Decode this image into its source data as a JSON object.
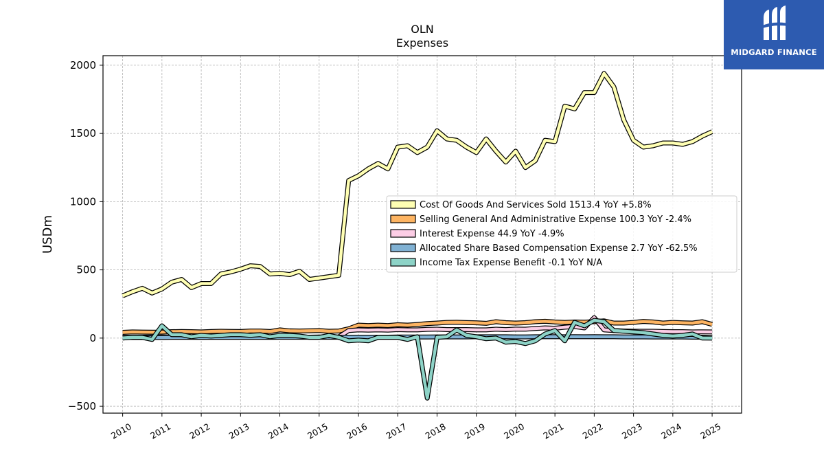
{
  "chart_data": {
    "type": "line",
    "title": "OLN",
    "subtitle": "Expenses",
    "ylabel": "USDm",
    "xlabel": "",
    "ylim": [
      -550,
      2070
    ],
    "xlim": [
      2009.5,
      2025.75
    ],
    "yticks": [
      -500,
      0,
      500,
      1000,
      1500,
      2000
    ],
    "ytick_labels": [
      "−500",
      "0",
      "500",
      "1000",
      "1500",
      "2000"
    ],
    "xticks": [
      2010,
      2011,
      2012,
      2013,
      2014,
      2015,
      2016,
      2017,
      2018,
      2019,
      2020,
      2021,
      2022,
      2023,
      2024,
      2025
    ],
    "xtick_labels": [
      "2010",
      "2011",
      "2012",
      "2013",
      "2014",
      "2015",
      "2016",
      "2017",
      "2018",
      "2019",
      "2020",
      "2021",
      "2022",
      "2023",
      "2024",
      "2025"
    ],
    "grid": true,
    "legend_position": "center-right",
    "x": [
      2010.0,
      2010.25,
      2010.5,
      2010.75,
      2011.0,
      2011.25,
      2011.5,
      2011.75,
      2012.0,
      2012.25,
      2012.5,
      2012.75,
      2013.0,
      2013.25,
      2013.5,
      2013.75,
      2014.0,
      2014.25,
      2014.5,
      2014.75,
      2015.0,
      2015.25,
      2015.5,
      2015.75,
      2016.0,
      2016.25,
      2016.5,
      2016.75,
      2017.0,
      2017.25,
      2017.5,
      2017.75,
      2018.0,
      2018.25,
      2018.5,
      2018.75,
      2019.0,
      2019.25,
      2019.5,
      2019.75,
      2020.0,
      2020.25,
      2020.5,
      2020.75,
      2021.0,
      2021.25,
      2021.5,
      2021.75,
      2022.0,
      2022.25,
      2022.5,
      2022.75,
      2023.0,
      2023.25,
      2023.5,
      2023.75,
      2024.0,
      2024.25,
      2024.5,
      2024.75,
      2025.0
    ],
    "series": [
      {
        "name": "Cost Of Goods And Services Sold",
        "legend": "Cost Of Goods And Services Sold  1513.4 YoY +5.8%",
        "color": "#ffffb3",
        "values": [
          310,
          340,
          365,
          330,
          360,
          410,
          430,
          370,
          400,
          400,
          470,
          485,
          505,
          530,
          525,
          470,
          475,
          465,
          490,
          430,
          440,
          450,
          460,
          1155,
          1190,
          1240,
          1280,
          1240,
          1400,
          1410,
          1360,
          1400,
          1520,
          1460,
          1450,
          1400,
          1360,
          1460,
          1370,
          1290,
          1370,
          1250,
          1300,
          1450,
          1440,
          1700,
          1680,
          1800,
          1800,
          1940,
          1840,
          1600,
          1450,
          1400,
          1410,
          1430,
          1430,
          1420,
          1440,
          1480,
          1513.4
        ]
      },
      {
        "name": "Selling General And Administrative Expense",
        "legend": "Selling General And Administrative Expense  100.3 YoY -2.4%",
        "color": "#fdb462",
        "values": [
          42,
          45,
          44,
          43,
          44,
          47,
          48,
          47,
          45,
          48,
          50,
          49,
          48,
          52,
          52,
          48,
          60,
          53,
          52,
          53,
          55,
          50,
          52,
          68,
          95,
          92,
          95,
          92,
          98,
          95,
          100,
          106,
          110,
          115,
          116,
          114,
          112,
          108,
          120,
          113,
          110,
          113,
          120,
          123,
          118,
          115,
          118,
          117,
          120,
          126,
          110,
          110,
          115,
          122,
          118,
          110,
          115,
          112,
          110,
          120,
          100.3
        ]
      },
      {
        "name": "Interest Expense",
        "legend": "Interest Expense  44.9 YoY -4.9%",
        "color": "#fccde5",
        "values": [
          5,
          6,
          7,
          8,
          8,
          7,
          8,
          7,
          6,
          7,
          8,
          8,
          7,
          7,
          7,
          7,
          8,
          8,
          7,
          7,
          8,
          8,
          9,
          55,
          60,
          58,
          60,
          58,
          62,
          60,
          60,
          64,
          65,
          62,
          62,
          62,
          60,
          60,
          65,
          62,
          66,
          65,
          70,
          75,
          72,
          80,
          85,
          75,
          150,
          60,
          55,
          52,
          50,
          50,
          50,
          48,
          47,
          47,
          45,
          46,
          44.9
        ]
      },
      {
        "name": "Allocated Share Based Compensation Expense",
        "legend": "Allocated Share Based Compensation Expense  2.7 YoY -62.5%",
        "color": "#80b1d3",
        "values": [
          4,
          4,
          4,
          4,
          4,
          5,
          5,
          5,
          5,
          5,
          5,
          5,
          5,
          5,
          5,
          5,
          6,
          6,
          6,
          6,
          6,
          6,
          6,
          7,
          7,
          7,
          7,
          7,
          8,
          8,
          8,
          8,
          9,
          9,
          9,
          9,
          10,
          10,
          10,
          10,
          9,
          9,
          10,
          10,
          11,
          10,
          11,
          10,
          11,
          10,
          10,
          9,
          9,
          9,
          8,
          8,
          8,
          8,
          7,
          7,
          2.7
        ]
      },
      {
        "name": "Income Tax Expense Benefit",
        "legend": "Income Tax Expense Benefit  -0.1 YoY N/A",
        "color": "#8dd3c7",
        "values": [
          0,
          5,
          5,
          -10,
          90,
          25,
          25,
          10,
          20,
          15,
          20,
          25,
          25,
          20,
          25,
          10,
          20,
          20,
          15,
          5,
          5,
          20,
          5,
          -20,
          -15,
          -20,
          5,
          5,
          5,
          -10,
          10,
          -440,
          5,
          10,
          60,
          20,
          10,
          -5,
          0,
          -30,
          -25,
          -40,
          -20,
          30,
          55,
          -20,
          115,
          90,
          130,
          120,
          55,
          50,
          45,
          40,
          30,
          20,
          15,
          20,
          30,
          0,
          -0.1
        ]
      }
    ]
  },
  "logo": {
    "text": "MIDGARD FINANCE",
    "icon": "midgard-logo-icon",
    "bg_color": "#2d5bb0"
  }
}
